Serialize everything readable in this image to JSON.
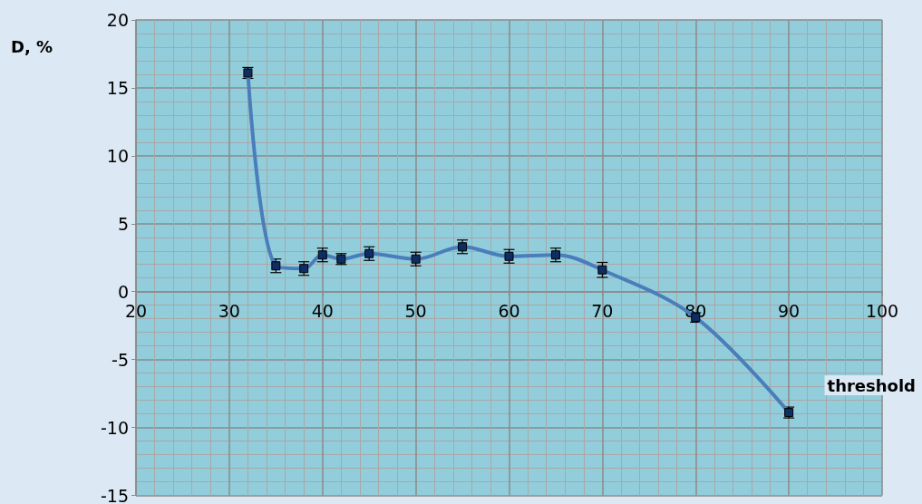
{
  "chart_data": {
    "type": "line",
    "xlabel": "threshold",
    "ylabel": "D, %",
    "x": [
      32,
      35,
      38,
      40,
      42,
      45,
      50,
      55,
      60,
      65,
      70,
      80,
      90
    ],
    "series": [
      {
        "color": "#4a7ebb",
        "values": [
          16.1,
          1.9,
          1.7,
          2.7,
          2.4,
          2.8,
          2.4,
          3.3,
          2.6,
          2.7,
          1.6,
          -1.9,
          -8.9
        ],
        "errors": [
          0.4,
          0.5,
          0.5,
          0.5,
          0.4,
          0.5,
          0.5,
          0.5,
          0.5,
          0.5,
          0.55,
          0.35,
          0.4
        ]
      }
    ],
    "xlim": [
      20,
      100
    ],
    "xticks": [
      20,
      30,
      40,
      50,
      60,
      70,
      80,
      90,
      100
    ],
    "ylim": [
      -15,
      20
    ],
    "yticks": [
      -15,
      -10,
      -5,
      0,
      5,
      10,
      15,
      20
    ],
    "grid": true,
    "marker": "square",
    "line_style": "solid"
  }
}
